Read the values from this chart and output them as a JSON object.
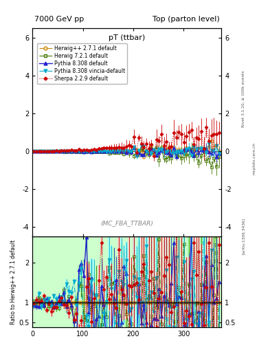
{
  "title_left": "7000 GeV pp",
  "title_right": "Top (parton level)",
  "plot_title": "pT (ttbar)",
  "ylabel_ratio": "Ratio to Herwig++ 2.7.1 default",
  "annotation": "(MC_FBA_TTBAR)",
  "rivet_label": "Rivet 3.1.10, ≥ 100k events",
  "arxiv_label": "[arXiv:1306.3436]",
  "mcplots_label": "mcplots.cern.ch",
  "xlim": [
    0,
    375
  ],
  "ylim_main": [
    -4.5,
    6.5
  ],
  "ylim_ratio": [
    0.38,
    2.65
  ],
  "ratio_yticks": [
    0.5,
    1.0,
    2.0
  ],
  "main_yticks": [
    -4,
    -2,
    0,
    2,
    4,
    6
  ],
  "series": [
    {
      "label": "Herwig++ 2.7.1 default",
      "color": "#cc8800",
      "linestyle": "-.",
      "marker": "o",
      "markerfacecolor": "none",
      "linewidth": 0.8,
      "markersize": 3.5,
      "band_color": "#ffff99"
    },
    {
      "label": "Herwig 7.2.1 default",
      "color": "#447700",
      "linestyle": "-.",
      "marker": "s",
      "markerfacecolor": "none",
      "linewidth": 0.8,
      "markersize": 3.5,
      "band_color": "#99ff99"
    },
    {
      "label": "Pythia 8.308 default",
      "color": "#2222cc",
      "linestyle": "-",
      "marker": "^",
      "markerfacecolor": "#2222cc",
      "linewidth": 1.0,
      "markersize": 3.5,
      "band_color": "#aaffaa"
    },
    {
      "label": "Pythia 8.308 vincia-default",
      "color": "#00aacc",
      "linestyle": "-.",
      "marker": "v",
      "markerfacecolor": "#00aacc",
      "linewidth": 0.8,
      "markersize": 3.5,
      "band_color": "#99ffff"
    },
    {
      "label": "Sherpa 2.2.9 default",
      "color": "#cc0000",
      "linestyle": ":",
      "marker": "D",
      "markerfacecolor": "#cc0000",
      "linewidth": 0.8,
      "markersize": 2.5,
      "band_color": "#ffcccc"
    }
  ]
}
